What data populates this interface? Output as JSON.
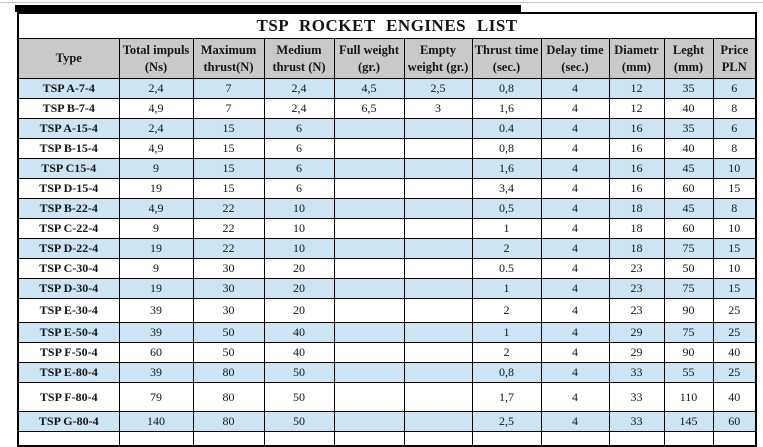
{
  "title": "TSP ROCKET ENGINES LIST",
  "colors": {
    "header_bg": "#c9c9c9",
    "row_stripe_blue": "#cde4f3",
    "border": "#000000",
    "text": "#151515"
  },
  "table": {
    "columns": [
      "Type",
      "Total impuls (Ns)",
      "Maximum thrust(N)",
      "Medium thrust (N)",
      "Full weight (gr.)",
      "Empty weight (gr.)",
      "Thrust time (sec.)",
      "Delay time (sec.)",
      "Diametr (mm)",
      "Leght (mm)",
      "Price PLN"
    ],
    "rows": [
      [
        "TSP A-7-4",
        "2,4",
        "7",
        "2,4",
        "4,5",
        "2,5",
        "0,8",
        "4",
        "12",
        "35",
        "6"
      ],
      [
        "TSP B-7-4",
        "4,9",
        "7",
        "2,4",
        "6,5",
        "3",
        "1,6",
        "4",
        "12",
        "40",
        "8"
      ],
      [
        "TSP A-15-4",
        "2,4",
        "15",
        "6",
        "",
        "",
        "0.4",
        "4",
        "16",
        "35",
        "6"
      ],
      [
        "TSP B-15-4",
        "4,9",
        "15",
        "6",
        "",
        "",
        "0,8",
        "4",
        "16",
        "40",
        "8"
      ],
      [
        "TSP C15-4",
        "9",
        "15",
        "6",
        "",
        "",
        "1,6",
        "4",
        "16",
        "45",
        "10"
      ],
      [
        "TSP D-15-4",
        "19",
        "15",
        "6",
        "",
        "",
        "3,4",
        "4",
        "16",
        "60",
        "15"
      ],
      [
        "TSP B-22-4",
        "4,9",
        "22",
        "10",
        "",
        "",
        "0,5",
        "4",
        "18",
        "45",
        "8"
      ],
      [
        "TSP C-22-4",
        "9",
        "22",
        "10",
        "",
        "",
        "1",
        "4",
        "18",
        "60",
        "10"
      ],
      [
        "TSP D-22-4",
        "19",
        "22",
        "10",
        "",
        "",
        "2",
        "4",
        "18",
        "75",
        "15"
      ],
      [
        "TSP C-30-4",
        "9",
        "30",
        "20",
        "",
        "",
        "0.5",
        "4",
        "23",
        "50",
        "10"
      ],
      [
        "TSP D-30-4",
        "19",
        "30",
        "20",
        "",
        "",
        "1",
        "4",
        "23",
        "75",
        "15"
      ],
      [
        "TSP E-30-4",
        "39",
        "30",
        "20",
        "",
        "",
        "2",
        "4",
        "23",
        "90",
        "25"
      ],
      [
        "TSP E-50-4",
        "39",
        "50",
        "40",
        "",
        "",
        "1",
        "4",
        "29",
        "75",
        "25"
      ],
      [
        "TSP F-50-4",
        "60",
        "50",
        "40",
        "",
        "",
        "2",
        "4",
        "29",
        "90",
        "40"
      ],
      [
        "TSP E-80-4",
        "39",
        "80",
        "50",
        "",
        "",
        "0,8",
        "4",
        "33",
        "55",
        "25"
      ],
      [
        "TSP F-80-4",
        "79",
        "80",
        "50",
        "",
        "",
        "1,7",
        "4",
        "33",
        "110",
        "40"
      ],
      [
        "TSP G-80-4",
        "140",
        "80",
        "50",
        "",
        "",
        "2,5",
        "4",
        "33",
        "145",
        "60"
      ],
      [
        "",
        "",
        "",
        "",
        "",
        "",
        "",
        "",
        "",
        "",
        ""
      ]
    ]
  }
}
